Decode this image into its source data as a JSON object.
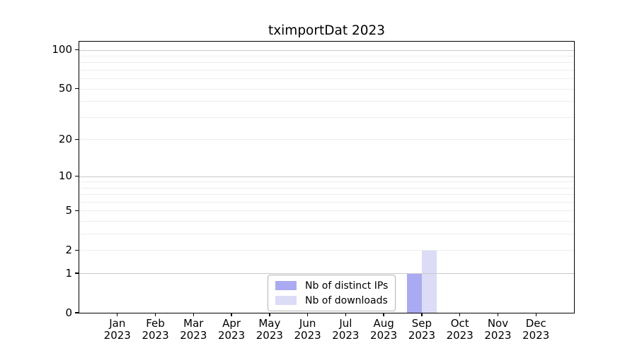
{
  "figure_title": "tximportDat 2023",
  "chart_data": {
    "type": "bar",
    "title": "tximportDat 2023",
    "xlabel": "",
    "ylabel": "",
    "y_scale": "log1p",
    "ylim": [
      0,
      115.6
    ],
    "y_ticks": [
      0,
      1,
      2,
      5,
      10,
      20,
      50,
      100
    ],
    "grid_major": [
      1,
      10,
      100
    ],
    "grid_minor": [
      2,
      3,
      4,
      5,
      6,
      7,
      8,
      9,
      20,
      30,
      40,
      50,
      60,
      70,
      80,
      90
    ],
    "categories": [
      "Jan",
      "Feb",
      "Mar",
      "Apr",
      "May",
      "Jun",
      "Jul",
      "Aug",
      "Sep",
      "Oct",
      "Nov",
      "Dec"
    ],
    "x_year": "2023",
    "series": [
      {
        "name": "Nb of distinct IPs",
        "color": "#aaaaf2",
        "values": [
          0,
          0,
          0,
          0,
          0,
          0,
          0,
          0,
          1,
          0,
          0,
          0
        ]
      },
      {
        "name": "Nb of downloads",
        "color": "#dcdcf7",
        "values": [
          0,
          0,
          0,
          0,
          0,
          0,
          0,
          0,
          2,
          0,
          0,
          0
        ]
      }
    ],
    "legend": {
      "position": "lower center",
      "entries": [
        "Nb of distinct IPs",
        "Nb of downloads"
      ]
    }
  },
  "colors": {
    "background": "#ffffff",
    "spine": "#000000",
    "grid_major": "#c9c9c9",
    "grid_minor": "#ededed",
    "tick": "#000000",
    "text": "#000000",
    "legend_border": "#b3b3b3"
  }
}
